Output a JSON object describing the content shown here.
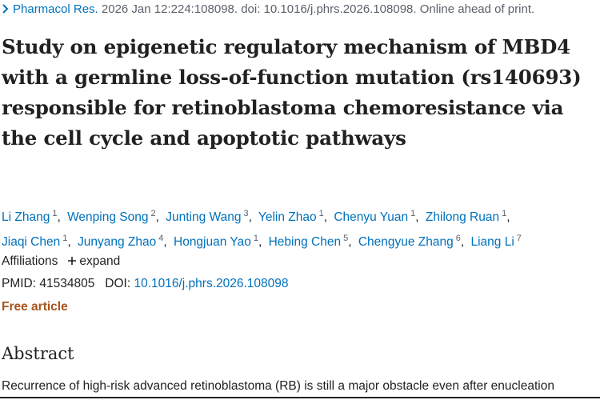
{
  "citation": {
    "journal": "Pharmacol Res.",
    "details": "2026 Jan 12:224:108098. doi: 10.1016/j.phrs.2026.108098. Online ahead of print."
  },
  "title": "Study on epigenetic regulatory mechanism of MBD4 with a germline loss-of-function mutation (rs140693) responsible for retinoblastoma chemoresistance via the cell cycle and apoptotic pathways",
  "authors": [
    {
      "name": "Li Zhang",
      "affiliation": 1
    },
    {
      "name": "Wenping Song",
      "affiliation": 2
    },
    {
      "name": "Junting Wang",
      "affiliation": 3
    },
    {
      "name": "Yelin Zhao",
      "affiliation": 1
    },
    {
      "name": "Chenyu Yuan",
      "affiliation": 1
    },
    {
      "name": "Zhilong Ruan",
      "affiliation": 1
    },
    {
      "name": "Jiaqi Chen",
      "affiliation": 1
    },
    {
      "name": "Junyang Zhao",
      "affiliation": 4
    },
    {
      "name": "Hongjuan Yao",
      "affiliation": 1
    },
    {
      "name": "Hebing Chen",
      "affiliation": 5
    },
    {
      "name": "Chengyue Zhang",
      "affiliation": 6
    },
    {
      "name": "Liang Li",
      "affiliation": 7
    }
  ],
  "affiliations": {
    "label": "Affiliations",
    "toggle": "expand"
  },
  "identifiers": {
    "pmid_label": "PMID:",
    "pmid": "41534805",
    "doi_label": "DOI:",
    "doi": "10.1016/j.phrs.2026.108098"
  },
  "free_article": "Free article",
  "abstract": {
    "heading": "Abstract",
    "text": "Recurrence of high-risk advanced retinoblastoma (RB) is still a major obstacle even after enucleation"
  }
}
